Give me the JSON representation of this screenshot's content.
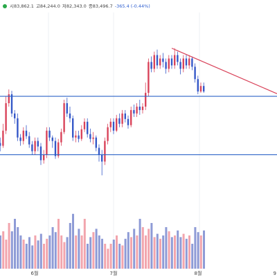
{
  "legend": {
    "open": "시83,862.1",
    "high": "고84,244.0",
    "low": "저82,343.0",
    "close": "종83,496.7",
    "change": "-365.4 (-0.44%)",
    "dot_color": "#2aa84a"
  },
  "colors": {
    "up": "#d9435a",
    "down": "#3558c8",
    "up_volume": "#f2a5ad",
    "down_volume": "#8e9bd6",
    "level_line": "#2e64c8",
    "trend_line": "#d9435a",
    "grid": "#eceff3"
  },
  "x_ticks": [
    "6월",
    "7월",
    "8월",
    "9"
  ],
  "chart_data": {
    "type": "candlestick",
    "price_levels": [
      84000,
      75500
    ],
    "trend_line": {
      "from": [
        60,
        91000
      ],
      "to": [
        95,
        84600
      ]
    },
    "candles": [
      [
        78000,
        77200,
        79500,
        76500
      ],
      [
        77200,
        76800,
        78000,
        76000
      ],
      [
        76800,
        79000,
        80000,
        76500
      ],
      [
        79000,
        83000,
        84000,
        78500
      ],
      [
        83000,
        84300,
        85000,
        82500
      ],
      [
        84300,
        81500,
        84800,
        81000
      ],
      [
        81500,
        80800,
        82000,
        80000
      ],
      [
        80800,
        78000,
        81500,
        77500
      ],
      [
        78000,
        77500,
        78500,
        76800
      ],
      [
        77500,
        79000,
        79500,
        77000
      ],
      [
        79000,
        78200,
        79800,
        77800
      ],
      [
        78200,
        77000,
        78800,
        76500
      ],
      [
        77000,
        76000,
        77500,
        75500
      ],
      [
        76000,
        77500,
        78000,
        75500
      ],
      [
        77500,
        76700,
        78000,
        76000
      ],
      [
        76700,
        74700,
        77200,
        74000
      ],
      [
        74700,
        75500,
        76200,
        74200
      ],
      [
        75500,
        79000,
        79500,
        75000
      ],
      [
        79000,
        78000,
        79500,
        77500
      ],
      [
        78000,
        77500,
        78300,
        76500
      ],
      [
        77500,
        75300,
        78000,
        74900
      ],
      [
        75300,
        77300,
        77800,
        75000
      ],
      [
        77300,
        78800,
        79300,
        76800
      ],
      [
        78800,
        83000,
        83500,
        78500
      ],
      [
        83000,
        81500,
        83800,
        81000
      ],
      [
        81500,
        80800,
        82500,
        80200
      ],
      [
        80800,
        78000,
        81200,
        77500
      ],
      [
        78000,
        78300,
        79000,
        77300
      ],
      [
        78300,
        77800,
        79000,
        77300
      ],
      [
        77800,
        79200,
        79800,
        77500
      ],
      [
        79200,
        80300,
        80800,
        78800
      ],
      [
        80300,
        78500,
        80800,
        78000
      ],
      [
        78500,
        77800,
        79300,
        77300
      ],
      [
        77800,
        78000,
        78800,
        77000
      ],
      [
        78000,
        76500,
        78300,
        76000
      ],
      [
        76500,
        75500,
        77000,
        74500
      ],
      [
        75500,
        74500,
        76200,
        72500
      ],
      [
        74500,
        77500,
        78000,
        74000
      ],
      [
        77500,
        79500,
        80000,
        77000
      ],
      [
        79500,
        80300,
        80800,
        78800
      ],
      [
        80300,
        79000,
        80800,
        78500
      ],
      [
        79000,
        80800,
        81300,
        78800
      ],
      [
        80800,
        80000,
        81500,
        79500
      ],
      [
        80000,
        81500,
        82000,
        79500
      ],
      [
        81500,
        80700,
        82000,
        80200
      ],
      [
        80700,
        79800,
        81200,
        79300
      ],
      [
        79800,
        82000,
        82500,
        79500
      ],
      [
        82000,
        81500,
        82800,
        81000
      ],
      [
        81500,
        82500,
        83000,
        81000
      ],
      [
        82500,
        82000,
        83500,
        81300
      ],
      [
        82000,
        82500,
        83000,
        81500
      ],
      [
        82500,
        84500,
        86000,
        82000
      ],
      [
        84500,
        89000,
        89500,
        84000
      ],
      [
        89000,
        88000,
        89800,
        87500
      ],
      [
        88000,
        90000,
        90500,
        87500
      ],
      [
        90000,
        88500,
        90800,
        88000
      ],
      [
        88500,
        89500,
        90000,
        88000
      ],
      [
        89500,
        89000,
        90300,
        88200
      ],
      [
        89000,
        88000,
        89500,
        87300
      ],
      [
        88000,
        89500,
        90000,
        87500
      ],
      [
        89500,
        88500,
        90000,
        88000
      ],
      [
        88500,
        90000,
        91000,
        88000
      ],
      [
        90000,
        89000,
        90500,
        88500
      ],
      [
        89000,
        88000,
        89500,
        87200
      ],
      [
        88000,
        89500,
        90000,
        87500
      ],
      [
        89500,
        88500,
        90000,
        88000
      ],
      [
        88500,
        89500,
        90000,
        88000
      ],
      [
        89500,
        88300,
        89800,
        87800
      ],
      [
        88300,
        86500,
        88800,
        86000
      ],
      [
        86500,
        84700,
        87000,
        84300
      ],
      [
        84700,
        85500,
        86000,
        84500
      ],
      [
        85500,
        84700,
        86000,
        84500
      ]
    ],
    "volume": [
      30,
      40,
      45,
      35,
      55,
      45,
      60,
      50,
      40,
      35,
      30,
      38,
      28,
      40,
      34,
      42,
      30,
      36,
      40,
      50,
      44,
      60,
      40,
      32,
      38,
      55,
      66,
      40,
      48,
      40,
      60,
      30,
      38,
      44,
      48,
      40,
      36,
      30,
      24,
      30,
      35,
      40,
      30,
      28,
      36,
      44,
      38,
      48,
      40,
      60,
      50,
      40,
      48,
      55,
      38,
      42,
      36,
      40,
      50,
      45,
      38,
      40,
      46,
      38,
      42,
      36,
      40,
      30,
      50,
      44,
      40,
      46
    ]
  }
}
